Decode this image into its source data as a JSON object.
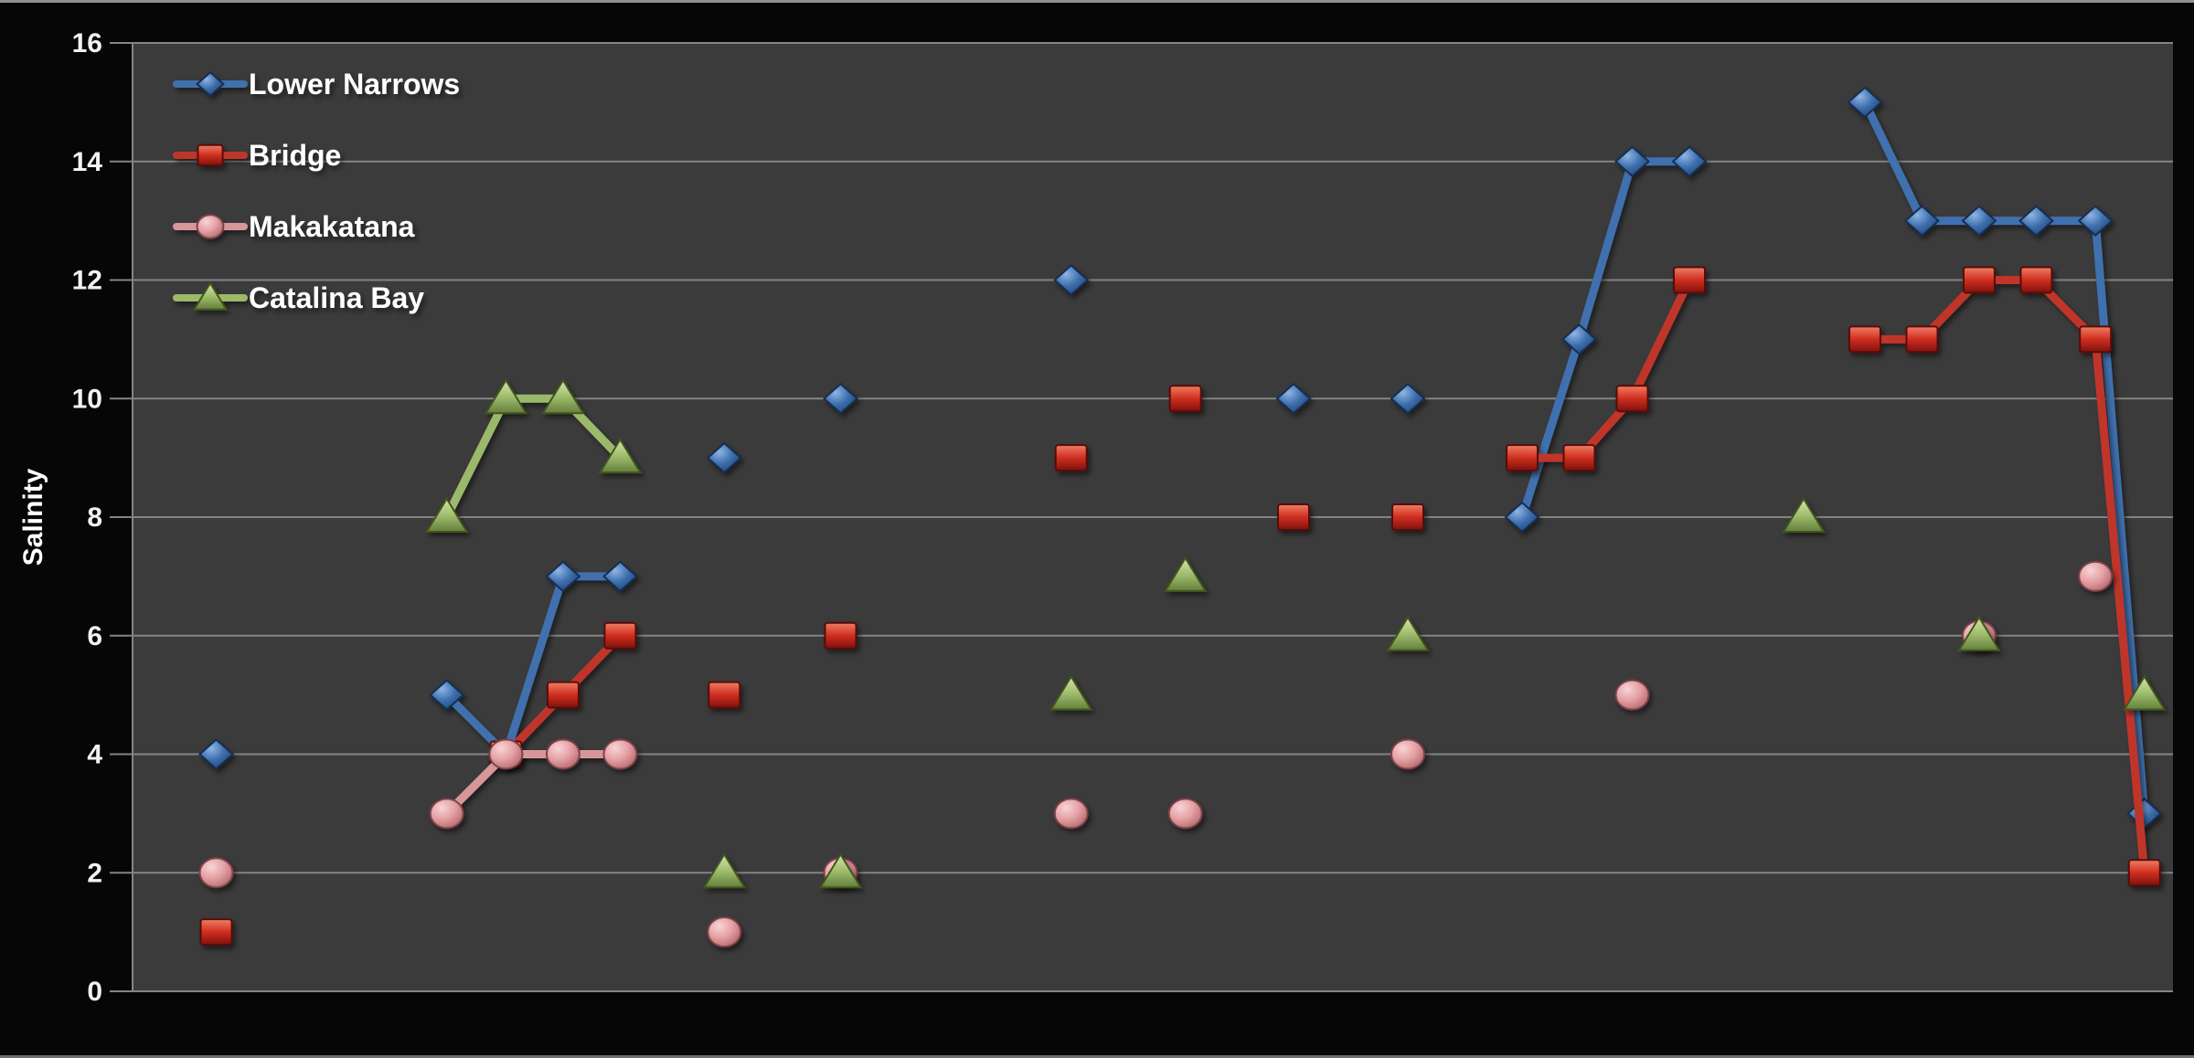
{
  "chart_data": {
    "type": "line",
    "title": "",
    "xlabel": "",
    "ylabel": "Salinity",
    "ylim": [
      0,
      16
    ],
    "y_ticks": [
      16,
      14,
      12,
      10,
      8,
      6,
      4,
      2,
      0
    ],
    "x_unit": "percent-of-axis",
    "x_tick_labels": [],
    "grid": "horizontal",
    "legend_position": "inside-top-left",
    "colors": {
      "plot_background": "#3b3b3b",
      "outer_background": "#050505",
      "gridline": "#848484",
      "axis_text": "#f2f2f2",
      "legend_text": "#ffffff",
      "frame_border": "#8f8f8f"
    },
    "series": [
      {
        "name": "Lower Narrows",
        "marker": "diamond",
        "color": "#3f6fae",
        "fill_light": "#8fb6e4",
        "fill_mid": "#3e6fae",
        "fill_dark": "#1f4474",
        "stroke": "#142f52",
        "segments": [
          [
            [
              4.1,
              4
            ]
          ],
          [
            [
              15.4,
              5
            ],
            [
              18.3,
              4
            ],
            [
              21.1,
              7
            ],
            [
              23.9,
              7
            ]
          ],
          [
            [
              29.0,
              9
            ]
          ],
          [
            [
              34.7,
              10
            ]
          ],
          [
            [
              46.0,
              12
            ]
          ],
          [
            [
              56.9,
              10
            ]
          ],
          [
            [
              62.5,
              10
            ]
          ],
          [
            [
              68.1,
              8
            ],
            [
              70.9,
              11
            ],
            [
              73.5,
              14
            ],
            [
              76.3,
              14
            ]
          ],
          [
            [
              84.9,
              15
            ],
            [
              87.7,
              13
            ],
            [
              90.5,
              13
            ],
            [
              93.3,
              13
            ],
            [
              96.2,
              13
            ],
            [
              98.6,
              3
            ]
          ]
        ]
      },
      {
        "name": "Bridge",
        "marker": "square",
        "color": "#c0342a",
        "fill_light": "#ef7f63",
        "fill_mid": "#cf2e20",
        "fill_dark": "#7e120c",
        "stroke": "#560b07",
        "segments": [
          [
            [
              4.1,
              1
            ]
          ],
          [
            [
              18.3,
              4
            ],
            [
              21.1,
              5
            ],
            [
              23.9,
              6
            ]
          ],
          [
            [
              29.0,
              5
            ]
          ],
          [
            [
              34.7,
              6
            ]
          ],
          [
            [
              46.0,
              9
            ]
          ],
          [
            [
              51.6,
              10
            ]
          ],
          [
            [
              56.9,
              8
            ]
          ],
          [
            [
              62.5,
              8
            ]
          ],
          [
            [
              68.1,
              9
            ],
            [
              70.9,
              9
            ],
            [
              73.5,
              10
            ],
            [
              76.3,
              12
            ]
          ],
          [
            [
              84.9,
              11
            ],
            [
              87.7,
              11
            ],
            [
              90.5,
              12
            ],
            [
              93.3,
              12
            ],
            [
              96.2,
              11
            ],
            [
              98.6,
              2
            ]
          ]
        ]
      },
      {
        "name": "Makakatana",
        "marker": "circle",
        "color": "#d9969a",
        "fill_light": "#f7d4d6",
        "fill_mid": "#e4a0a4",
        "fill_dark": "#b06468",
        "stroke": "#7d4347",
        "segments": [
          [
            [
              4.1,
              2
            ]
          ],
          [
            [
              15.4,
              3
            ],
            [
              18.3,
              4
            ],
            [
              21.1,
              4
            ],
            [
              23.9,
              4
            ]
          ],
          [
            [
              29.0,
              1
            ]
          ],
          [
            [
              34.7,
              2
            ]
          ],
          [
            [
              46.0,
              3
            ]
          ],
          [
            [
              51.6,
              3
            ]
          ],
          [
            [
              62.5,
              4
            ]
          ],
          [
            [
              73.5,
              5
            ]
          ],
          [
            [
              90.5,
              6
            ]
          ],
          [
            [
              96.2,
              7
            ]
          ]
        ]
      },
      {
        "name": "Catalina Bay",
        "marker": "triangle",
        "color": "#9cb86a",
        "fill_light": "#d6e4a8",
        "fill_mid": "#9fbd6d",
        "fill_dark": "#647f3c",
        "stroke": "#43561f",
        "segments": [
          [
            [
              15.4,
              8
            ],
            [
              18.3,
              10
            ],
            [
              21.1,
              10
            ],
            [
              23.9,
              9
            ]
          ],
          [
            [
              29.0,
              2
            ]
          ],
          [
            [
              34.7,
              2
            ]
          ],
          [
            [
              46.0,
              5
            ]
          ],
          [
            [
              51.6,
              7
            ]
          ],
          [
            [
              62.5,
              6
            ]
          ],
          [
            [
              81.9,
              8
            ]
          ],
          [
            [
              90.5,
              6
            ]
          ],
          [
            [
              98.6,
              5
            ]
          ]
        ]
      }
    ]
  }
}
